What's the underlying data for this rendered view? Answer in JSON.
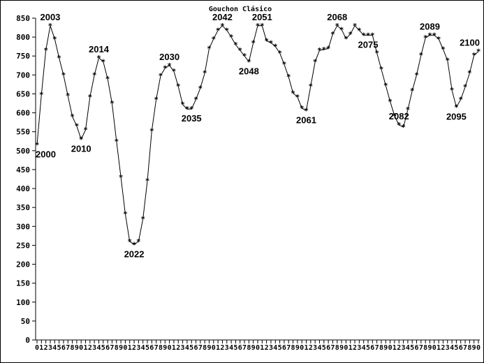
{
  "chart_data": {
    "type": "line",
    "title": "Gouchon Clásico",
    "xlabel": "",
    "ylabel": "",
    "ylim": [
      0,
      850
    ],
    "yticks": [
      0,
      50,
      100,
      150,
      200,
      250,
      300,
      350,
      400,
      450,
      500,
      550,
      600,
      650,
      700,
      750,
      800,
      850
    ],
    "grid": false,
    "marker": "asterisk",
    "x": [
      2000,
      2001,
      2002,
      2003,
      2004,
      2005,
      2006,
      2007,
      2008,
      2009,
      2010,
      2011,
      2012,
      2013,
      2014,
      2015,
      2016,
      2017,
      2018,
      2019,
      2020,
      2021,
      2022,
      2023,
      2024,
      2025,
      2026,
      2027,
      2028,
      2029,
      2030,
      2031,
      2032,
      2033,
      2034,
      2035,
      2036,
      2037,
      2038,
      2039,
      2040,
      2041,
      2042,
      2043,
      2044,
      2045,
      2046,
      2047,
      2048,
      2049,
      2050,
      2051,
      2052,
      2053,
      2054,
      2055,
      2056,
      2057,
      2058,
      2059,
      2060,
      2061,
      2062,
      2063,
      2064,
      2065,
      2066,
      2067,
      2068,
      2069,
      2070,
      2071,
      2072,
      2073,
      2074,
      2075,
      2076,
      2077,
      2078,
      2079,
      2080,
      2081,
      2082,
      2083,
      2084,
      2085,
      2086,
      2087,
      2088,
      2089,
      2090,
      2091,
      2092,
      2093,
      2094,
      2095,
      2096,
      2097,
      2098,
      2099,
      2100
    ],
    "series": [
      {
        "values": [
          515,
          648,
          765,
          830,
          795,
          745,
          700,
          645,
          590,
          565,
          530,
          555,
          642,
          700,
          745,
          735,
          690,
          625,
          525,
          430,
          333,
          260,
          252,
          260,
          320,
          420,
          552,
          635,
          698,
          718,
          725,
          710,
          670,
          622,
          610,
          610,
          635,
          665,
          705,
          770,
          795,
          818,
          830,
          818,
          800,
          780,
          765,
          750,
          735,
          785,
          830,
          830,
          790,
          785,
          775,
          758,
          728,
          695,
          652,
          642,
          612,
          606,
          670,
          735,
          765,
          767,
          770,
          808,
          830,
          820,
          796,
          808,
          830,
          818,
          805,
          805,
          805,
          758,
          715,
          672,
          630,
          592,
          568,
          562,
          608,
          658,
          700,
          752,
          798,
          805,
          805,
          795,
          768,
          738,
          660,
          615,
          635,
          668,
          705,
          752,
          762
        ]
      }
    ],
    "annotations": [
      {
        "x": 2000,
        "text": "2000"
      },
      {
        "x": 2003,
        "text": "2003"
      },
      {
        "x": 2010,
        "text": "2010"
      },
      {
        "x": 2014,
        "text": "2014"
      },
      {
        "x": 2022,
        "text": "2022"
      },
      {
        "x": 2030,
        "text": "2030"
      },
      {
        "x": 2035,
        "text": "2035"
      },
      {
        "x": 2042,
        "text": "2042"
      },
      {
        "x": 2048,
        "text": "2048"
      },
      {
        "x": 2051,
        "text": "2051"
      },
      {
        "x": 2061,
        "text": "2061"
      },
      {
        "x": 2068,
        "text": "2068"
      },
      {
        "x": 2075,
        "text": "2075"
      },
      {
        "x": 2082,
        "text": "2082"
      },
      {
        "x": 2089,
        "text": "2089"
      },
      {
        "x": 2095,
        "text": "2095"
      },
      {
        "x": 2100,
        "text": "2100"
      }
    ],
    "x_tick_labels": [
      "0",
      "1",
      "2",
      "3",
      "4",
      "5",
      "6",
      "7",
      "8",
      "9",
      "0",
      "1",
      "2",
      "3",
      "4",
      "5",
      "6",
      "7",
      "8",
      "9",
      "0",
      "1",
      "2",
      "3",
      "4",
      "5",
      "6",
      "7",
      "8",
      "9",
      "0",
      "1",
      "2",
      "3",
      "4",
      "5",
      "6",
      "7",
      "8",
      "9",
      "0",
      "1",
      "2",
      "3",
      "4",
      "5",
      "6",
      "7",
      "8",
      "9",
      "0",
      "1",
      "2",
      "3",
      "4",
      "5",
      "6",
      "7",
      "8",
      "9",
      "0",
      "1",
      "2",
      "3",
      "4",
      "5",
      "6",
      "7",
      "8",
      "9",
      "0",
      "1",
      "2",
      "3",
      "4",
      "5",
      "6",
      "7",
      "8",
      "9",
      "0",
      "1",
      "2",
      "3",
      "4",
      "5",
      "6",
      "7",
      "8",
      "9",
      "0",
      "1",
      "2",
      "3",
      "4",
      "5",
      "6",
      "7",
      "8",
      "9",
      "0"
    ]
  }
}
